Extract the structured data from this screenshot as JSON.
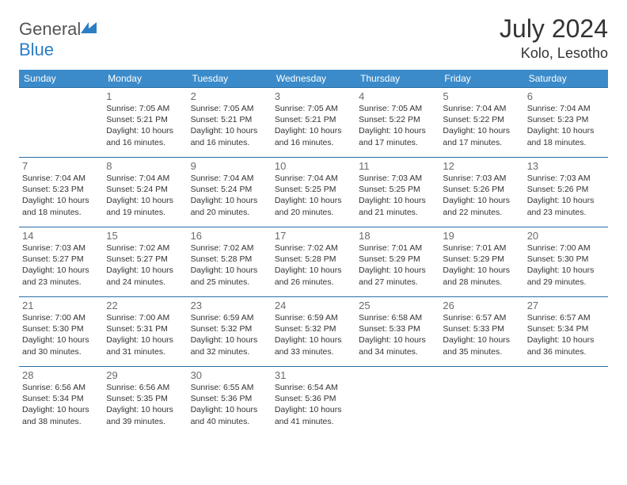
{
  "brand": {
    "general": "General",
    "blue": "Blue"
  },
  "title": "July 2024",
  "location": "Kolo, Lesotho",
  "colors": {
    "header_bg": "#3b8bca",
    "header_text": "#ffffff",
    "row_border": "#2a6fa5",
    "body_text": "#333333",
    "daynum": "#6a6a6a",
    "brand_blue": "#2a7ec4",
    "brand_gray": "#555555"
  },
  "weekdays": [
    "Sunday",
    "Monday",
    "Tuesday",
    "Wednesday",
    "Thursday",
    "Friday",
    "Saturday"
  ],
  "weeks": [
    [
      null,
      {
        "d": "1",
        "sr": "Sunrise: 7:05 AM",
        "ss": "Sunset: 5:21 PM",
        "dl": "Daylight: 10 hours and 16 minutes."
      },
      {
        "d": "2",
        "sr": "Sunrise: 7:05 AM",
        "ss": "Sunset: 5:21 PM",
        "dl": "Daylight: 10 hours and 16 minutes."
      },
      {
        "d": "3",
        "sr": "Sunrise: 7:05 AM",
        "ss": "Sunset: 5:21 PM",
        "dl": "Daylight: 10 hours and 16 minutes."
      },
      {
        "d": "4",
        "sr": "Sunrise: 7:05 AM",
        "ss": "Sunset: 5:22 PM",
        "dl": "Daylight: 10 hours and 17 minutes."
      },
      {
        "d": "5",
        "sr": "Sunrise: 7:04 AM",
        "ss": "Sunset: 5:22 PM",
        "dl": "Daylight: 10 hours and 17 minutes."
      },
      {
        "d": "6",
        "sr": "Sunrise: 7:04 AM",
        "ss": "Sunset: 5:23 PM",
        "dl": "Daylight: 10 hours and 18 minutes."
      }
    ],
    [
      {
        "d": "7",
        "sr": "Sunrise: 7:04 AM",
        "ss": "Sunset: 5:23 PM",
        "dl": "Daylight: 10 hours and 18 minutes."
      },
      {
        "d": "8",
        "sr": "Sunrise: 7:04 AM",
        "ss": "Sunset: 5:24 PM",
        "dl": "Daylight: 10 hours and 19 minutes."
      },
      {
        "d": "9",
        "sr": "Sunrise: 7:04 AM",
        "ss": "Sunset: 5:24 PM",
        "dl": "Daylight: 10 hours and 20 minutes."
      },
      {
        "d": "10",
        "sr": "Sunrise: 7:04 AM",
        "ss": "Sunset: 5:25 PM",
        "dl": "Daylight: 10 hours and 20 minutes."
      },
      {
        "d": "11",
        "sr": "Sunrise: 7:03 AM",
        "ss": "Sunset: 5:25 PM",
        "dl": "Daylight: 10 hours and 21 minutes."
      },
      {
        "d": "12",
        "sr": "Sunrise: 7:03 AM",
        "ss": "Sunset: 5:26 PM",
        "dl": "Daylight: 10 hours and 22 minutes."
      },
      {
        "d": "13",
        "sr": "Sunrise: 7:03 AM",
        "ss": "Sunset: 5:26 PM",
        "dl": "Daylight: 10 hours and 23 minutes."
      }
    ],
    [
      {
        "d": "14",
        "sr": "Sunrise: 7:03 AM",
        "ss": "Sunset: 5:27 PM",
        "dl": "Daylight: 10 hours and 23 minutes."
      },
      {
        "d": "15",
        "sr": "Sunrise: 7:02 AM",
        "ss": "Sunset: 5:27 PM",
        "dl": "Daylight: 10 hours and 24 minutes."
      },
      {
        "d": "16",
        "sr": "Sunrise: 7:02 AM",
        "ss": "Sunset: 5:28 PM",
        "dl": "Daylight: 10 hours and 25 minutes."
      },
      {
        "d": "17",
        "sr": "Sunrise: 7:02 AM",
        "ss": "Sunset: 5:28 PM",
        "dl": "Daylight: 10 hours and 26 minutes."
      },
      {
        "d": "18",
        "sr": "Sunrise: 7:01 AM",
        "ss": "Sunset: 5:29 PM",
        "dl": "Daylight: 10 hours and 27 minutes."
      },
      {
        "d": "19",
        "sr": "Sunrise: 7:01 AM",
        "ss": "Sunset: 5:29 PM",
        "dl": "Daylight: 10 hours and 28 minutes."
      },
      {
        "d": "20",
        "sr": "Sunrise: 7:00 AM",
        "ss": "Sunset: 5:30 PM",
        "dl": "Daylight: 10 hours and 29 minutes."
      }
    ],
    [
      {
        "d": "21",
        "sr": "Sunrise: 7:00 AM",
        "ss": "Sunset: 5:30 PM",
        "dl": "Daylight: 10 hours and 30 minutes."
      },
      {
        "d": "22",
        "sr": "Sunrise: 7:00 AM",
        "ss": "Sunset: 5:31 PM",
        "dl": "Daylight: 10 hours and 31 minutes."
      },
      {
        "d": "23",
        "sr": "Sunrise: 6:59 AM",
        "ss": "Sunset: 5:32 PM",
        "dl": "Daylight: 10 hours and 32 minutes."
      },
      {
        "d": "24",
        "sr": "Sunrise: 6:59 AM",
        "ss": "Sunset: 5:32 PM",
        "dl": "Daylight: 10 hours and 33 minutes."
      },
      {
        "d": "25",
        "sr": "Sunrise: 6:58 AM",
        "ss": "Sunset: 5:33 PM",
        "dl": "Daylight: 10 hours and 34 minutes."
      },
      {
        "d": "26",
        "sr": "Sunrise: 6:57 AM",
        "ss": "Sunset: 5:33 PM",
        "dl": "Daylight: 10 hours and 35 minutes."
      },
      {
        "d": "27",
        "sr": "Sunrise: 6:57 AM",
        "ss": "Sunset: 5:34 PM",
        "dl": "Daylight: 10 hours and 36 minutes."
      }
    ],
    [
      {
        "d": "28",
        "sr": "Sunrise: 6:56 AM",
        "ss": "Sunset: 5:34 PM",
        "dl": "Daylight: 10 hours and 38 minutes."
      },
      {
        "d": "29",
        "sr": "Sunrise: 6:56 AM",
        "ss": "Sunset: 5:35 PM",
        "dl": "Daylight: 10 hours and 39 minutes."
      },
      {
        "d": "30",
        "sr": "Sunrise: 6:55 AM",
        "ss": "Sunset: 5:36 PM",
        "dl": "Daylight: 10 hours and 40 minutes."
      },
      {
        "d": "31",
        "sr": "Sunrise: 6:54 AM",
        "ss": "Sunset: 5:36 PM",
        "dl": "Daylight: 10 hours and 41 minutes."
      },
      null,
      null,
      null
    ]
  ]
}
